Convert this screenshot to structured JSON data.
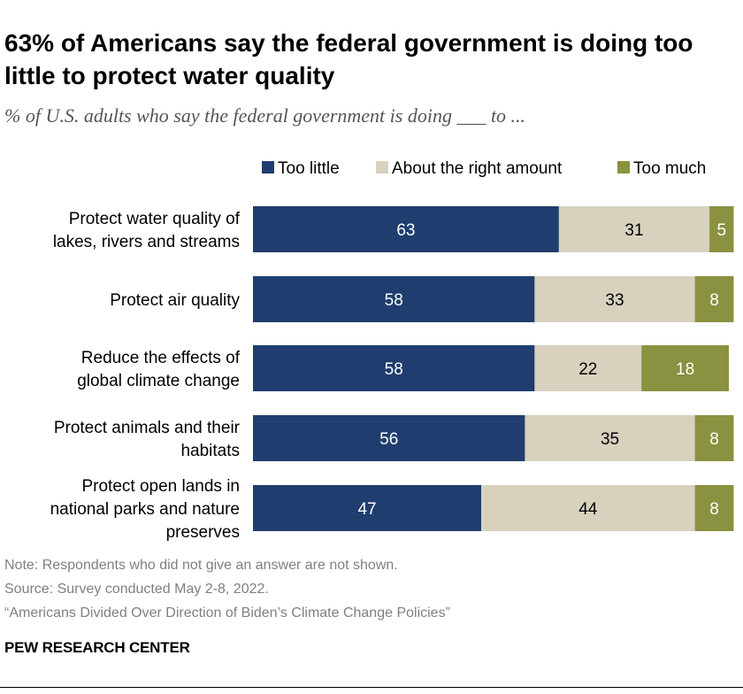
{
  "title": "63% of Americans say the federal government is doing too little to protect water quality",
  "subtitle": "% of U.S. adults who say the federal government is doing ___ to ...",
  "chart_data": {
    "type": "bar",
    "orientation": "horizontal",
    "stacked": true,
    "legend_position": "top",
    "grid": false,
    "categories": [
      [
        "Protect water quality of",
        "lakes, rivers and streams"
      ],
      [
        "Protect air quality"
      ],
      [
        "Reduce the effects of",
        "global climate change"
      ],
      [
        "Protect animals and their",
        "habitats"
      ],
      [
        "Protect open lands in",
        "national parks and nature",
        "preserves"
      ]
    ],
    "series": [
      {
        "name": "Too little",
        "color": "#1f3d6e",
        "label_color": "#ffffff",
        "values": [
          63,
          58,
          58,
          56,
          47
        ]
      },
      {
        "name": "About the right amount",
        "color": "#d7d1be",
        "label_color": "#000000",
        "values": [
          31,
          33,
          22,
          35,
          44
        ]
      },
      {
        "name": "Too much",
        "color": "#8a9140",
        "label_color": "#ffffff",
        "values": [
          5,
          8,
          18,
          8,
          8
        ]
      }
    ],
    "xlim": [
      0,
      100
    ]
  },
  "notes": {
    "note": "Note: Respondents who did not give an answer are not shown.",
    "source": "Source: Survey conducted May 2-8, 2022.",
    "report": "“Americans Divided Over Direction of Biden’s Climate Change Policies”"
  },
  "brand": "PEW RESEARCH CENTER"
}
